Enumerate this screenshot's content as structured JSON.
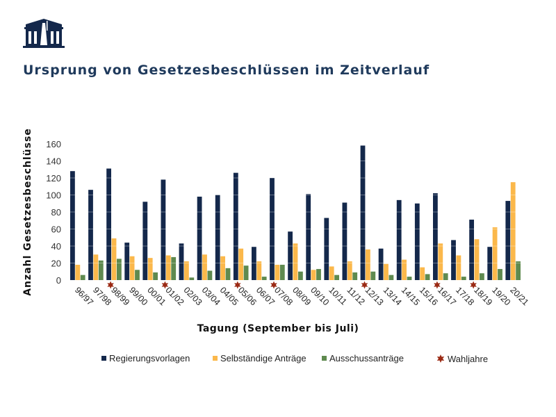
{
  "colors": {
    "regierung": "#14284b",
    "selbst": "#fbb84b",
    "ausschuss": "#5f8a4f",
    "wahl": "#9b2a14",
    "title": "#1f3a5c"
  },
  "chart_data": {
    "type": "bar",
    "title": "Ursprung von Gesetzesbeschlüssen im Zeitverlauf",
    "xlabel": "Tagung (September bis Juli)",
    "ylabel": "Anzahl Gesetzesbeschlüsse",
    "ylim": [
      0,
      160
    ],
    "yticks": [
      0,
      20,
      40,
      60,
      80,
      100,
      120,
      140,
      160
    ],
    "grid": true,
    "legend_position": "bottom",
    "categories": [
      "96/97",
      "97/98",
      "98/99",
      "99/00",
      "00/01",
      "01/02",
      "02/03",
      "03/04",
      "04/05",
      "05/06",
      "06/07",
      "07/08",
      "08/09",
      "09/10",
      "10/11",
      "11/12",
      "12/13",
      "13/14",
      "14/15",
      "15/16",
      "16/17",
      "17/18",
      "18/19",
      "19/20",
      "20/21"
    ],
    "series": [
      {
        "name": "Regierungsvorlagen",
        "values": [
          128,
          106,
          131,
          44,
          92,
          118,
          43,
          98,
          100,
          126,
          39,
          120,
          57,
          101,
          73,
          91,
          158,
          37,
          94,
          90,
          102,
          47,
          71,
          39,
          93
        ]
      },
      {
        "name": "Selbständige Anträge",
        "values": [
          18,
          30,
          49,
          28,
          26,
          29,
          22,
          30,
          28,
          37,
          22,
          18,
          43,
          12,
          16,
          22,
          36,
          19,
          24,
          15,
          43,
          29,
          48,
          62,
          115
        ]
      },
      {
        "name": "Ausschussanträge",
        "values": [
          6,
          23,
          25,
          12,
          9,
          27,
          3,
          11,
          14,
          17,
          4,
          18,
          10,
          13,
          6,
          9,
          10,
          6,
          4,
          7,
          8,
          4,
          8,
          13,
          22
        ]
      }
    ],
    "markers": {
      "name": "Wahljahre",
      "categories": [
        "98/99",
        "01/02",
        "05/06",
        "07/08",
        "12/13",
        "16/17",
        "18/19"
      ]
    }
  }
}
